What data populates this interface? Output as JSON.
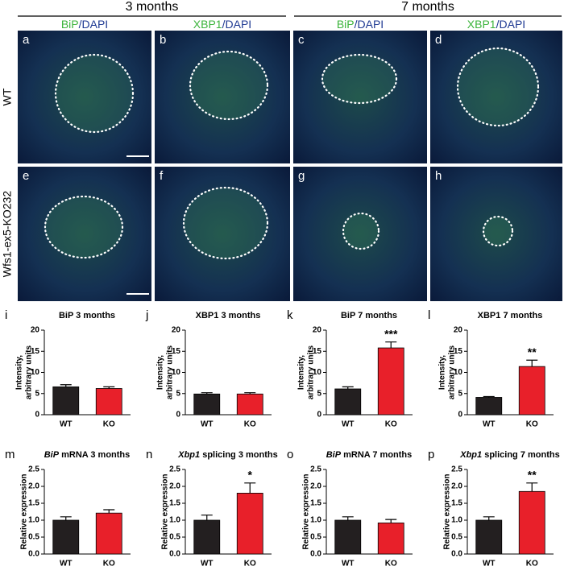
{
  "figure": {
    "headers": [
      "3 months",
      "7 months"
    ],
    "column_labels": [
      [
        {
          "text": "BiP",
          "color": "#3cb43c"
        },
        {
          "text": "/DAPI",
          "color": "#1f3a93"
        }
      ],
      [
        {
          "text": "XBP1",
          "color": "#3cb43c"
        },
        {
          "text": "/DAPI",
          "color": "#1f3a93"
        }
      ],
      [
        {
          "text": "BiP",
          "color": "#3cb43c"
        },
        {
          "text": "/DAPI",
          "color": "#1f3a93"
        }
      ],
      [
        {
          "text": "XBP1",
          "color": "#3cb43c"
        },
        {
          "text": "/DAPI",
          "color": "#1f3a93"
        }
      ]
    ],
    "row_labels": [
      "WT",
      "Wfs1-ex5-KO232"
    ],
    "panels": [
      "a",
      "b",
      "c",
      "d",
      "e",
      "f",
      "g",
      "h"
    ]
  },
  "chart_data": [
    {
      "type": "bar",
      "panel": "i",
      "title": [
        {
          "text": "BiP 3 months"
        }
      ],
      "ylabel": [
        "Intensity,",
        "arbitrary units"
      ],
      "categories": [
        "WT",
        "KO"
      ],
      "values": [
        6.6,
        6.2
      ],
      "errors": [
        0.5,
        0.4
      ],
      "colors": [
        "#231f20",
        "#e8202a"
      ],
      "ylim": [
        0,
        20
      ],
      "yticks": [
        0,
        5,
        10,
        15,
        20
      ]
    },
    {
      "type": "bar",
      "panel": "j",
      "title": [
        {
          "text": "XBP1 3 months"
        }
      ],
      "ylabel": [
        "Intensity,",
        "arbitrary units"
      ],
      "categories": [
        "WT",
        "KO"
      ],
      "values": [
        4.9,
        4.9
      ],
      "errors": [
        0.3,
        0.3
      ],
      "colors": [
        "#231f20",
        "#e8202a"
      ],
      "ylim": [
        0,
        20
      ],
      "yticks": [
        0,
        5,
        10,
        15,
        20
      ]
    },
    {
      "type": "bar",
      "panel": "k",
      "title": [
        {
          "text": "BiP 7 months"
        }
      ],
      "ylabel": [
        "Intensity,",
        "arbitrary units"
      ],
      "categories": [
        "WT",
        "KO"
      ],
      "values": [
        6.1,
        15.8
      ],
      "errors": [
        0.5,
        1.4
      ],
      "colors": [
        "#231f20",
        "#e8202a"
      ],
      "ylim": [
        0,
        20
      ],
      "yticks": [
        0,
        5,
        10,
        15,
        20
      ],
      "annotation": "***"
    },
    {
      "type": "bar",
      "panel": "l",
      "title": [
        {
          "text": "XBP1 7 months"
        }
      ],
      "ylabel": [
        "Intensity,",
        "arbitrary units"
      ],
      "categories": [
        "WT",
        "KO"
      ],
      "values": [
        4.1,
        11.4
      ],
      "errors": [
        0.2,
        1.5
      ],
      "colors": [
        "#231f20",
        "#e8202a"
      ],
      "ylim": [
        0,
        20
      ],
      "yticks": [
        0,
        5,
        10,
        15,
        20
      ],
      "annotation": "**"
    },
    {
      "type": "bar",
      "panel": "m",
      "title": [
        {
          "text": "BiP",
          "style": "italic"
        },
        {
          "text": " mRNA 3 months"
        }
      ],
      "ylabel": [
        "Relative expression"
      ],
      "categories": [
        "WT",
        "KO"
      ],
      "values": [
        1.0,
        1.21
      ],
      "errors": [
        0.1,
        0.1
      ],
      "colors": [
        "#231f20",
        "#e8202a"
      ],
      "ylim": [
        0,
        2.5
      ],
      "yticks": [
        {
          "value": 0,
          "label": "0.0"
        },
        0.5,
        {
          "value": 1,
          "label": "1.0"
        },
        1.5,
        {
          "value": 2,
          "label": "2.0"
        },
        2.5
      ]
    },
    {
      "type": "bar",
      "panel": "n",
      "title": [
        {
          "text": "Xbp1",
          "style": "italic"
        },
        {
          "text": " splicing 3 months"
        }
      ],
      "ylabel": [
        "Relative expression"
      ],
      "categories": [
        "WT",
        "KO"
      ],
      "values": [
        1.0,
        1.8
      ],
      "errors": [
        0.15,
        0.3
      ],
      "colors": [
        "#231f20",
        "#e8202a"
      ],
      "ylim": [
        0,
        2.5
      ],
      "yticks": [
        {
          "value": 0,
          "label": "0.0"
        },
        0.5,
        {
          "value": 1,
          "label": "1.0"
        },
        1.5,
        {
          "value": 2,
          "label": "2.0"
        },
        2.5
      ],
      "annotation": "*"
    },
    {
      "type": "bar",
      "panel": "o",
      "title": [
        {
          "text": "BiP",
          "style": "italic"
        },
        {
          "text": " mRNA 7 months"
        }
      ],
      "ylabel": [
        "Relative expression"
      ],
      "categories": [
        "WT",
        "KO"
      ],
      "values": [
        1.0,
        0.92
      ],
      "errors": [
        0.1,
        0.1
      ],
      "colors": [
        "#231f20",
        "#e8202a"
      ],
      "ylim": [
        0,
        2.5
      ],
      "yticks": [
        {
          "value": 0,
          "label": "0.0"
        },
        0.5,
        {
          "value": 1,
          "label": "1.0"
        },
        1.5,
        {
          "value": 2,
          "label": "2.0"
        },
        2.5
      ]
    },
    {
      "type": "bar",
      "panel": "p",
      "title": [
        {
          "text": "Xbp1",
          "style": "italic"
        },
        {
          "text": " splicing 7 months"
        }
      ],
      "ylabel": [
        "Relative expression"
      ],
      "categories": [
        "WT",
        "KO"
      ],
      "values": [
        1.0,
        1.85
      ],
      "errors": [
        0.1,
        0.25
      ],
      "colors": [
        "#231f20",
        "#e8202a"
      ],
      "ylim": [
        0,
        2.5
      ],
      "yticks": [
        {
          "value": 0,
          "label": "0.0"
        },
        0.5,
        {
          "value": 1,
          "label": "1.0"
        },
        1.5,
        {
          "value": 2,
          "label": "2.0"
        },
        2.5
      ],
      "annotation": "**"
    }
  ]
}
